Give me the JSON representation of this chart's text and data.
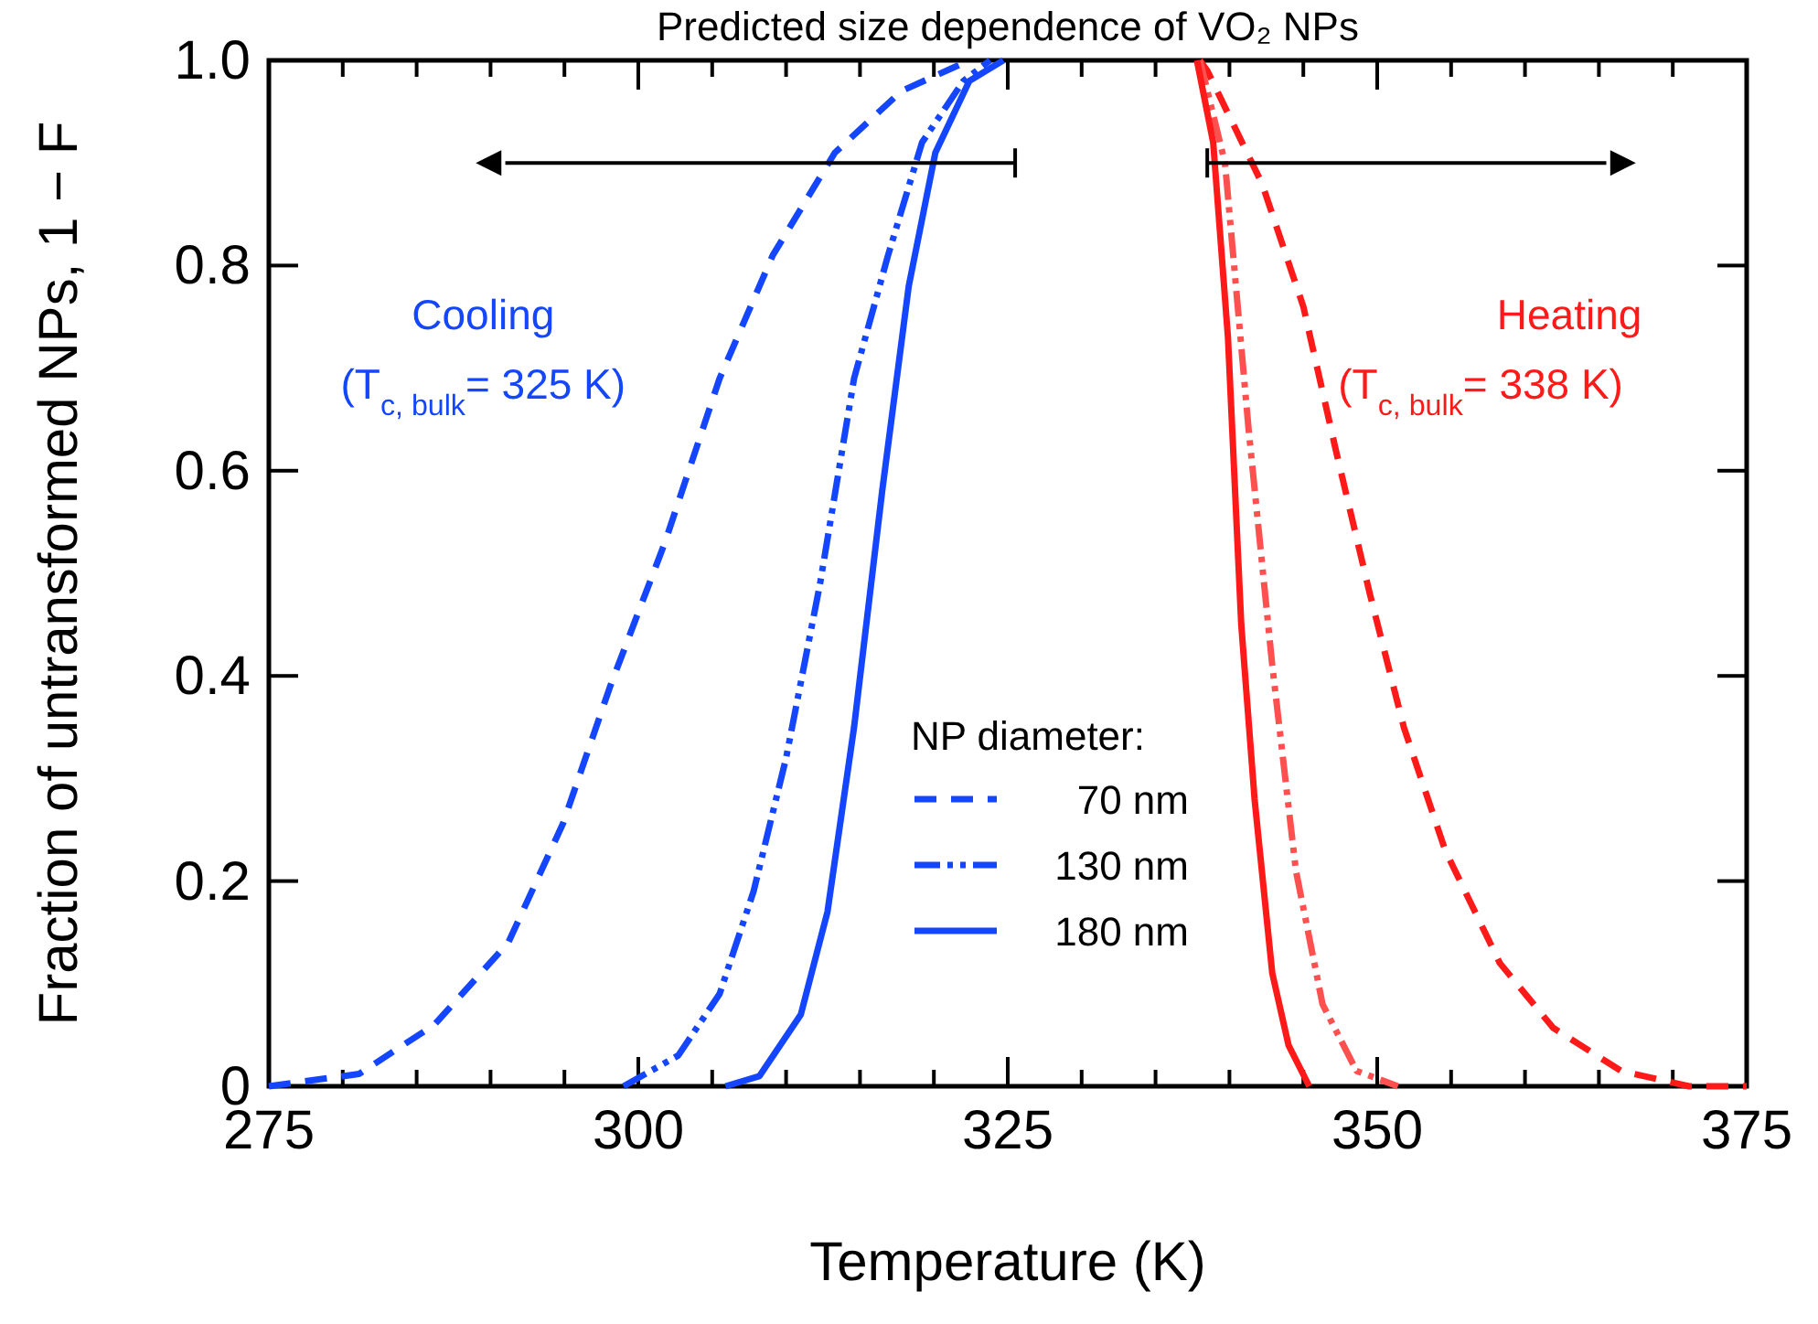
{
  "chart_data": {
    "type": "line",
    "title": "Predicted size dependence of VO₂ NPs",
    "xlabel": "Temperature (K)",
    "ylabel": "Fraction of untransformed NPs,  1 − F",
    "legend_title": "NP diameter:",
    "legend": "bottom",
    "grid": false,
    "xlim": [
      275,
      375
    ],
    "ylim": [
      0,
      1
    ],
    "xticks": [
      275,
      {
        "value": 280,
        "label": null
      },
      {
        "value": 285,
        "label": null
      },
      {
        "value": 290,
        "label": null
      },
      {
        "value": 295,
        "label": null
      },
      300,
      {
        "value": 305,
        "label": null
      },
      {
        "value": 310,
        "label": null
      },
      {
        "value": 315,
        "label": null
      },
      {
        "value": 320,
        "label": null
      },
      325,
      {
        "value": 330,
        "label": null
      },
      {
        "value": 335,
        "label": null
      },
      {
        "value": 340,
        "label": null
      },
      {
        "value": 345,
        "label": null
      },
      350,
      {
        "value": 355,
        "label": null
      },
      {
        "value": 360,
        "label": null
      },
      {
        "value": 365,
        "label": null
      },
      {
        "value": 370,
        "label": null
      },
      375
    ],
    "yticks": [
      0,
      {
        "value": 0.2,
        "label": "0.2"
      },
      {
        "value": 0.4,
        "label": "0.4"
      },
      {
        "value": 0.6,
        "label": "0.6"
      },
      {
        "value": 0.8,
        "label": "0.8"
      },
      {
        "value": 1,
        "label": "1.0"
      }
    ],
    "annotations": [
      "Cooling",
      "(T$_{c, bulk}$= 325 K)",
      "Heating",
      "(T$_{c, bulk}$= 338 K)"
    ],
    "series": [
      {
        "name": "70 nm",
        "color": "#1446ff",
        "line_style": "dashed",
        "x": [
          275,
          281.1,
          286.2,
          291.2,
          294.9,
          298.1,
          301.8,
          305.5,
          309.1,
          313.3,
          317.8,
          322.4
        ],
        "values": [
          0,
          0.012,
          0.06,
          0.14,
          0.256,
          0.39,
          0.53,
          0.69,
          0.81,
          0.91,
          0.97,
          1
        ]
      },
      {
        "name": "130 nm",
        "color": "#1446ff",
        "line_style": "dashdot",
        "x": [
          299,
          302.7,
          305.5,
          307.8,
          310,
          312.3,
          314.6,
          316.9,
          319.2,
          322,
          323.8
        ],
        "values": [
          0,
          0.03,
          0.09,
          0.19,
          0.32,
          0.49,
          0.69,
          0.81,
          0.92,
          0.98,
          1
        ]
      },
      {
        "name": "180 nm",
        "color": "#1446ff",
        "line_style": "solid",
        "x": [
          305.9,
          308.2,
          311,
          312.8,
          314.6,
          316.5,
          318.3,
          320.1,
          322.4,
          324.7
        ],
        "values": [
          0,
          0.01,
          0.07,
          0.17,
          0.35,
          0.58,
          0.78,
          0.91,
          0.98,
          1
        ]
      },
      {
        "color": "#ff1a1a",
        "line_style": "dashed",
        "x": [
          338,
          338.5,
          342.2,
          345,
          347.2,
          349.5,
          351.8,
          354.6,
          358.3,
          361.9,
          366.5,
          371.1,
          375
        ],
        "values": [
          1,
          0.99,
          0.88,
          0.76,
          0.62,
          0.48,
          0.35,
          0.23,
          0.12,
          0.057,
          0.015,
          0,
          0
        ]
      },
      {
        "color": "#ff5050",
        "line_style": "dashdot",
        "x": [
          338,
          339.7,
          341.3,
          342.9,
          344.5,
          346.3,
          348.6,
          351.4
        ],
        "values": [
          1,
          0.9,
          0.64,
          0.41,
          0.21,
          0.08,
          0.015,
          0
        ]
      },
      {
        "color": "#ff1a1a",
        "line_style": "solid",
        "x": [
          337.8,
          338.9,
          339.9,
          340.8,
          341.7,
          342.9,
          344,
          345.4
        ],
        "values": [
          1,
          0.92,
          0.73,
          0.45,
          0.28,
          0.11,
          0.04,
          0
        ]
      }
    ]
  }
}
